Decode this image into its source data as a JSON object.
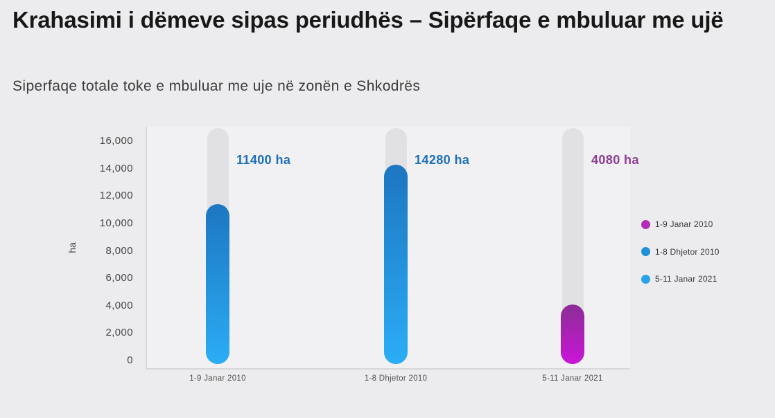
{
  "page": {
    "background": "#ececee"
  },
  "header": {
    "title": "Krahasimi i dëmeve sipas periudhës – Sipërfaqe e mbuluar me ujë",
    "subtitle": "Siperfaqe totale toke e mbuluar me uje në zonën e Shkodrës"
  },
  "chart_data": {
    "type": "bar",
    "title": "Krahasimi i dëmeve sipas periudhës – Sipërfaqe e mbuluar me ujë",
    "subtitle": "Siperfaqe totale toke e mbuluar me uje në zonën e Shkodrës",
    "categories": [
      "1-9 Janar 2010",
      "1-8 Dhjetor 2010",
      "5-11 Janar 2021"
    ],
    "values": [
      11400,
      14280,
      4080
    ],
    "value_labels": [
      "11400 ha",
      "14280 ha",
      "4080 ha"
    ],
    "value_label_colors": [
      "#1c6fb8",
      "#1c6fb8",
      "#8e3d96"
    ],
    "bar_gradients": [
      [
        "#1d76c1",
        "#2badf5"
      ],
      [
        "#1d76c1",
        "#2badf5"
      ],
      [
        "#8c2d95",
        "#cb15d8"
      ]
    ],
    "track_color": "#e1e1e4",
    "xlabel": "",
    "ylabel": "ha",
    "ylim": [
      0,
      16000
    ],
    "ytick_values": [
      16000,
      14000,
      12000,
      10000,
      8000,
      6000,
      4000,
      2000,
      0
    ],
    "ytick_labels": [
      "16,000",
      "14,000",
      "12,000",
      "10,000",
      "8,000",
      "6,000",
      "4,000",
      "2,000",
      "0"
    ],
    "grid": false,
    "bar_style": "rounded-pill-with-full-height-track",
    "legend": {
      "position": "right",
      "items": [
        {
          "label": "1-9 Janar 2010",
          "color": "#b32cb4"
        },
        {
          "label": "1-8 Dhjetor 2010",
          "color": "#2090d8"
        },
        {
          "label": "5-11 Janar 2021",
          "color": "#2aa3ea"
        }
      ]
    }
  }
}
